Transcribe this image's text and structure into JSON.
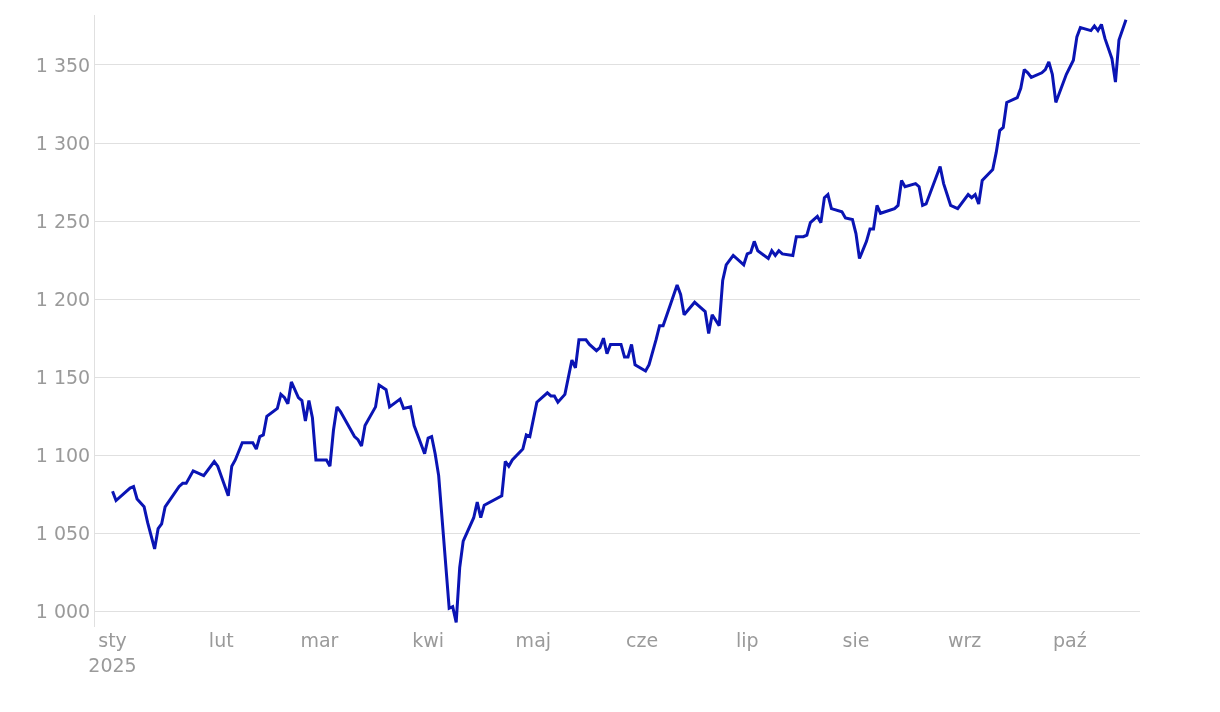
{
  "chart_data": {
    "type": "line",
    "x": [
      "2025-01-01",
      "2025-01-02",
      "2025-01-06",
      "2025-01-07",
      "2025-01-08",
      "2025-01-10",
      "2025-01-11",
      "2025-01-13",
      "2025-01-14",
      "2025-01-15",
      "2025-01-16",
      "2025-01-20",
      "2025-01-21",
      "2025-01-22",
      "2025-01-24",
      "2025-01-27",
      "2025-01-30",
      "2025-01-31",
      "2025-02-03",
      "2025-02-04",
      "2025-02-05",
      "2025-02-07",
      "2025-02-10",
      "2025-02-11",
      "2025-02-12",
      "2025-02-13",
      "2025-02-14",
      "2025-02-17",
      "2025-02-18",
      "2025-02-19",
      "2025-02-20",
      "2025-02-21",
      "2025-02-23",
      "2025-02-24",
      "2025-02-25",
      "2025-02-26",
      "2025-02-27",
      "2025-02-28",
      "2025-03-03",
      "2025-03-04",
      "2025-03-05",
      "2025-03-06",
      "2025-03-07",
      "2025-03-11",
      "2025-03-12",
      "2025-03-13",
      "2025-03-14",
      "2025-03-17",
      "2025-03-18",
      "2025-03-20",
      "2025-03-21",
      "2025-03-24",
      "2025-03-25",
      "2025-03-27",
      "2025-03-28",
      "2025-03-31",
      "2025-04-01",
      "2025-04-02",
      "2025-04-03",
      "2025-04-04",
      "2025-04-07",
      "2025-04-08",
      "2025-04-09",
      "2025-04-10",
      "2025-04-11",
      "2025-04-14",
      "2025-04-15",
      "2025-04-16",
      "2025-04-17",
      "2025-04-22",
      "2025-04-23",
      "2025-04-24",
      "2025-04-25",
      "2025-04-28",
      "2025-04-29",
      "2025-04-30",
      "2025-05-02",
      "2025-05-05",
      "2025-05-06",
      "2025-05-07",
      "2025-05-08",
      "2025-05-10",
      "2025-05-12",
      "2025-05-13",
      "2025-05-14",
      "2025-05-16",
      "2025-05-17",
      "2025-05-19",
      "2025-05-20",
      "2025-05-21",
      "2025-05-22",
      "2025-05-23",
      "2025-05-26",
      "2025-05-27",
      "2025-05-28",
      "2025-05-29",
      "2025-05-30",
      "2025-06-02",
      "2025-06-03",
      "2025-06-05",
      "2025-06-06",
      "2025-06-07",
      "2025-06-09",
      "2025-06-11",
      "2025-06-12",
      "2025-06-13",
      "2025-06-16",
      "2025-06-17",
      "2025-06-19",
      "2025-06-20",
      "2025-06-21",
      "2025-06-23",
      "2025-06-24",
      "2025-06-25",
      "2025-06-27",
      "2025-06-30",
      "2025-07-01",
      "2025-07-02",
      "2025-07-03",
      "2025-07-04",
      "2025-07-07",
      "2025-07-08",
      "2025-07-09",
      "2025-07-10",
      "2025-07-11",
      "2025-07-14",
      "2025-07-15",
      "2025-07-17",
      "2025-07-18",
      "2025-07-19",
      "2025-07-21",
      "2025-07-22",
      "2025-07-23",
      "2025-07-24",
      "2025-07-25",
      "2025-07-28",
      "2025-07-29",
      "2025-07-31",
      "2025-08-01",
      "2025-08-02",
      "2025-08-04",
      "2025-08-05",
      "2025-08-06",
      "2025-08-07",
      "2025-08-08",
      "2025-08-12",
      "2025-08-13",
      "2025-08-14",
      "2025-08-15",
      "2025-08-18",
      "2025-08-19",
      "2025-08-20",
      "2025-08-21",
      "2025-08-25",
      "2025-08-26",
      "2025-08-27",
      "2025-08-28",
      "2025-08-30",
      "2025-09-02",
      "2025-09-03",
      "2025-09-04",
      "2025-09-05",
      "2025-09-06",
      "2025-09-09",
      "2025-09-10",
      "2025-09-11",
      "2025-09-12",
      "2025-09-13",
      "2025-09-16",
      "2025-09-17",
      "2025-09-18",
      "2025-09-19",
      "2025-09-20",
      "2025-09-23",
      "2025-09-24",
      "2025-09-25",
      "2025-09-26",
      "2025-09-27",
      "2025-09-30",
      "2025-10-02",
      "2025-10-03",
      "2025-10-04",
      "2025-10-07",
      "2025-10-08",
      "2025-10-09",
      "2025-10-10",
      "2025-10-11",
      "2025-10-13",
      "2025-10-14",
      "2025-10-15",
      "2025-10-17"
    ],
    "series": [
      {
        "color": "#0a14b4",
        "values": [
          1077,
          1071,
          1079,
          1080,
          1072,
          1067,
          1057,
          1040,
          1053,
          1056,
          1067,
          1080,
          1082,
          1082,
          1090,
          1087,
          1096,
          1093,
          1074,
          1093,
          1097,
          1108,
          1108,
          1104,
          1112,
          1113,
          1125,
          1130,
          1139,
          1137,
          1133,
          1147,
          1137,
          1135,
          1122,
          1135,
          1124,
          1097,
          1097,
          1093,
          1116,
          1131,
          1128,
          1112,
          1110,
          1106,
          1119,
          1131,
          1145,
          1142,
          1131,
          1136,
          1130,
          1131,
          1119,
          1101,
          1111,
          1112,
          1101,
          1087,
          1002,
          1003,
          993,
          1028,
          1045,
          1060,
          1070,
          1060,
          1068,
          1074,
          1096,
          1093,
          1097,
          1104,
          1113,
          1112,
          1134,
          1140,
          1138,
          1138,
          1134,
          1139,
          1161,
          1156,
          1174,
          1174,
          1171,
          1167,
          1169,
          1175,
          1165,
          1171,
          1171,
          1163,
          1163,
          1171,
          1158,
          1154,
          1158,
          1174,
          1183,
          1183,
          1196,
          1209,
          1203,
          1190,
          1198,
          1196,
          1192,
          1178,
          1190,
          1183,
          1212,
          1222,
          1228,
          1222,
          1229,
          1230,
          1237,
          1231,
          1226,
          1231,
          1228,
          1231,
          1229,
          1228,
          1240,
          1240,
          1241,
          1249,
          1253,
          1249,
          1265,
          1267,
          1258,
          1256,
          1252,
          1251,
          1242,
          1226,
          1237,
          1245,
          1245,
          1260,
          1255,
          1258,
          1260,
          1276,
          1272,
          1274,
          1272,
          1260,
          1261,
          1285,
          1274,
          1267,
          1260,
          1258,
          1267,
          1265,
          1267,
          1261,
          1276,
          1283,
          1294,
          1308,
          1310,
          1326,
          1329,
          1335,
          1347,
          1345,
          1342,
          1345,
          1347,
          1352,
          1344,
          1326,
          1344,
          1353,
          1368,
          1374,
          1372,
          1375,
          1372,
          1376,
          1367,
          1354,
          1339,
          1366,
          1379
        ]
      }
    ],
    "xlim": [
      "2024-12-27",
      "2025-10-21"
    ],
    "xticks": [
      {
        "value": "2025-01-01",
        "label": "sty\n2025"
      },
      {
        "value": "2025-02-01",
        "label": "lut"
      },
      {
        "value": "2025-03-01",
        "label": "mar"
      },
      {
        "value": "2025-04-01",
        "label": "kwi"
      },
      {
        "value": "2025-05-01",
        "label": "maj"
      },
      {
        "value": "2025-06-01",
        "label": "cze"
      },
      {
        "value": "2025-07-01",
        "label": "lip"
      },
      {
        "value": "2025-08-01",
        "label": "sie"
      },
      {
        "value": "2025-09-01",
        "label": "wrz"
      },
      {
        "value": "2025-10-01",
        "label": "paź"
      }
    ],
    "ylim": [
      990,
      1382
    ],
    "yticks": [
      {
        "value": 1000,
        "label": "1 000"
      },
      {
        "value": 1050,
        "label": "1 050"
      },
      {
        "value": 1100,
        "label": "1 100"
      },
      {
        "value": 1150,
        "label": "1 150"
      },
      {
        "value": 1200,
        "label": "1 200"
      },
      {
        "value": 1250,
        "label": "1 250"
      },
      {
        "value": 1300,
        "label": "1 300"
      },
      {
        "value": 1350,
        "label": "1 350"
      }
    ],
    "grid": "y",
    "marker": "none",
    "line_style": "solid"
  }
}
